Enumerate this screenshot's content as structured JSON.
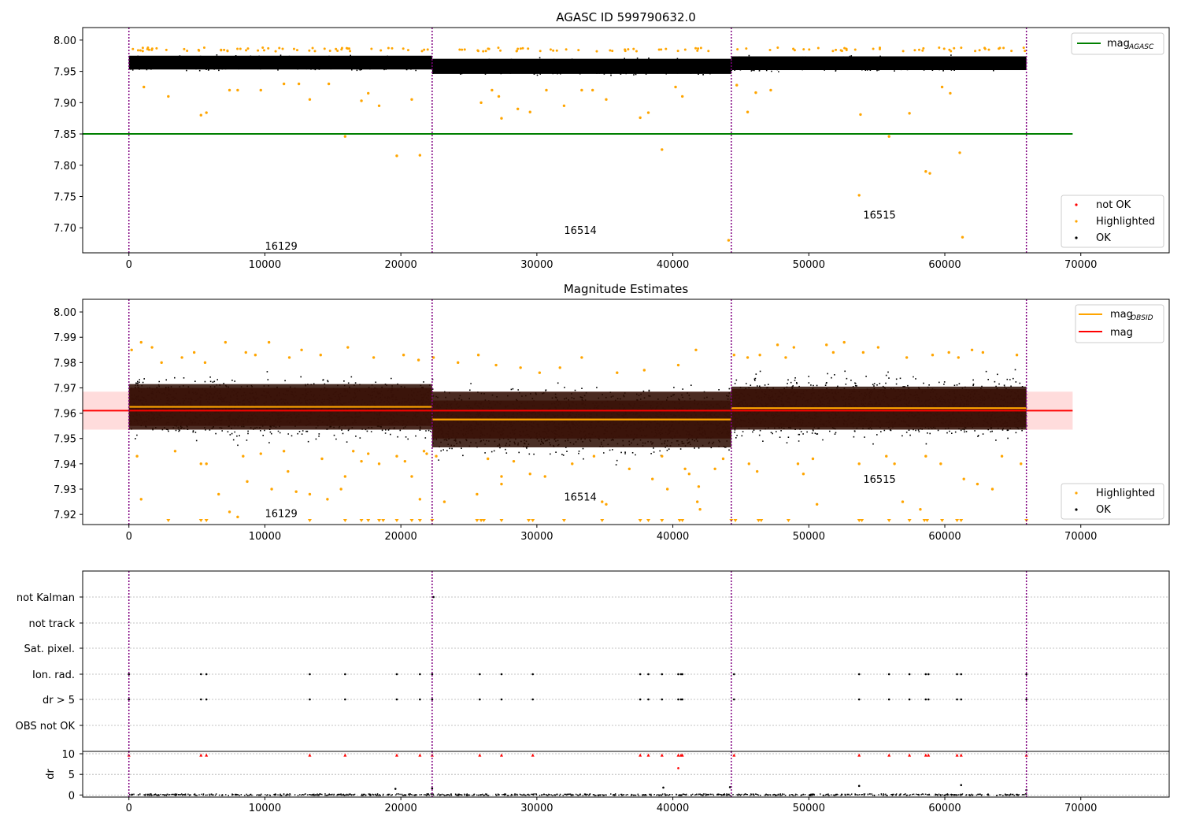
{
  "figure": {
    "vline_color": "#800080",
    "segment_boundaries": [
      0,
      22300,
      44300,
      66000
    ]
  },
  "chart_data": [
    {
      "type": "scatter",
      "title": "AGASC ID 599790632.0",
      "xlabel": "",
      "ylabel": "",
      "xlim": [
        -3400,
        76500
      ],
      "ylim": [
        7.66,
        8.02
      ],
      "x_ticks": [
        0,
        10000,
        20000,
        30000,
        40000,
        50000,
        60000,
        70000
      ],
      "y_ticks": [
        7.7,
        7.75,
        7.8,
        7.85,
        7.9,
        7.95,
        8.0
      ],
      "y_tick_labels": [
        "7.70",
        "7.75",
        "7.80",
        "7.85",
        "7.90",
        "7.95",
        "8.00"
      ],
      "grid": false,
      "segments": [
        {
          "obsid": "16129",
          "x_start": 0,
          "x_end": 22300,
          "ok_center": 7.964,
          "ok_spread": 0.01
        },
        {
          "obsid": "16514",
          "x_start": 22300,
          "x_end": 44300,
          "ok_center": 7.958,
          "ok_spread": 0.011
        },
        {
          "obsid": "16515",
          "x_start": 44300,
          "x_end": 66000,
          "ok_center": 7.963,
          "ok_spread": 0.01
        }
      ],
      "obsid_labels": [
        {
          "text": "16129",
          "x": 10000,
          "y": 7.665
        },
        {
          "text": "16514",
          "x": 32000,
          "y": 7.69
        },
        {
          "text": "16515",
          "x": 54000,
          "y": 7.715
        }
      ],
      "highlighted_points": [
        [
          5300,
          7.88
        ],
        [
          5700,
          7.884
        ],
        [
          7400,
          7.92
        ],
        [
          8000,
          7.92
        ],
        [
          9700,
          7.92
        ],
        [
          11400,
          7.93
        ],
        [
          12500,
          7.93
        ],
        [
          13300,
          7.905
        ],
        [
          14700,
          7.93
        ],
        [
          15900,
          7.846
        ],
        [
          17100,
          7.903
        ],
        [
          17600,
          7.915
        ],
        [
          18400,
          7.895
        ],
        [
          19700,
          7.815
        ],
        [
          20800,
          7.905
        ],
        [
          21400,
          7.816
        ],
        [
          2900,
          7.91
        ],
        [
          1100,
          7.925
        ],
        [
          25900,
          7.9
        ],
        [
          26700,
          7.92
        ],
        [
          27200,
          7.91
        ],
        [
          27400,
          7.875
        ],
        [
          28600,
          7.89
        ],
        [
          29500,
          7.885
        ],
        [
          30700,
          7.92
        ],
        [
          32000,
          7.895
        ],
        [
          33300,
          7.92
        ],
        [
          34100,
          7.92
        ],
        [
          35100,
          7.905
        ],
        [
          37600,
          7.876
        ],
        [
          38200,
          7.884
        ],
        [
          39200,
          7.825
        ],
        [
          40200,
          7.925
        ],
        [
          40700,
          7.91
        ],
        [
          44100,
          7.68
        ],
        [
          44700,
          7.928
        ],
        [
          45500,
          7.885
        ],
        [
          46100,
          7.916
        ],
        [
          47200,
          7.92
        ],
        [
          53800,
          7.881
        ],
        [
          53700,
          7.752
        ],
        [
          55900,
          7.846
        ],
        [
          57400,
          7.883
        ],
        [
          58600,
          7.79
        ],
        [
          58900,
          7.787
        ],
        [
          59800,
          7.925
        ],
        [
          60400,
          7.915
        ],
        [
          61100,
          7.82
        ],
        [
          61300,
          7.685
        ]
      ],
      "ref_lines": [
        {
          "name": "mag_AGASC",
          "y": 7.85,
          "x_start": -3400,
          "x_end": 69400,
          "color": "#008000"
        }
      ],
      "legends": [
        {
          "placement": "top-right",
          "entries": [
            {
              "label": "mag",
              "subscript": "AGASC",
              "marker": "line",
              "color": "#008000"
            }
          ]
        },
        {
          "placement": "bottom-right",
          "entries": [
            {
              "label": "not OK",
              "marker": "dot",
              "color": "#ff0000"
            },
            {
              "label": "Highlighted",
              "marker": "dot",
              "color": "#ffa500"
            },
            {
              "label": "OK",
              "marker": "dot",
              "color": "#000000"
            }
          ]
        }
      ]
    },
    {
      "type": "scatter",
      "title": "Magnitude Estimates",
      "xlabel": "",
      "ylabel": "",
      "xlim": [
        -3400,
        76500
      ],
      "ylim": [
        7.916,
        8.005
      ],
      "x_ticks": [
        0,
        10000,
        20000,
        30000,
        40000,
        50000,
        60000,
        70000
      ],
      "y_ticks": [
        7.92,
        7.93,
        7.94,
        7.95,
        7.96,
        7.97,
        7.98,
        7.99,
        8.0
      ],
      "y_tick_labels": [
        "7.92",
        "7.93",
        "7.94",
        "7.95",
        "7.96",
        "7.97",
        "7.98",
        "7.99",
        "8.00"
      ],
      "grid": false,
      "segments": [
        {
          "obsid": "16129",
          "x_start": 0,
          "x_end": 22300,
          "mag_obsid": 7.9625,
          "band_inner": [
            7.955,
            7.97
          ],
          "band_outer": [
            7.9535,
            7.9715
          ],
          "ok_center": 7.9625,
          "ok_spread": 0.0115
        },
        {
          "obsid": "16514",
          "x_start": 22300,
          "x_end": 44300,
          "mag_obsid": 7.9575,
          "band_inner": [
            7.95,
            7.965
          ],
          "band_outer": [
            7.9465,
            7.9685
          ],
          "ok_center": 7.957,
          "ok_spread": 0.0125
        },
        {
          "obsid": "16515",
          "x_start": 44300,
          "x_end": 66000,
          "mag_obsid": 7.962,
          "band_inner": [
            7.9545,
            7.9695
          ],
          "band_outer": [
            7.9535,
            7.9705
          ],
          "ok_center": 7.9625,
          "ok_spread": 0.0115
        }
      ],
      "obsid_labels": [
        {
          "text": "16129",
          "x": 10000,
          "y": 7.919
        },
        {
          "text": "16514",
          "x": 32000,
          "y": 7.9255
        },
        {
          "text": "16515",
          "x": 54000,
          "y": 7.9325
        }
      ],
      "highlighted_points": [
        [
          200,
          7.985
        ],
        [
          900,
          7.988
        ],
        [
          1700,
          7.986
        ],
        [
          2400,
          7.98
        ],
        [
          3900,
          7.982
        ],
        [
          4800,
          7.984
        ],
        [
          5600,
          7.98
        ],
        [
          7100,
          7.988
        ],
        [
          8600,
          7.984
        ],
        [
          9300,
          7.983
        ],
        [
          10300,
          7.988
        ],
        [
          11800,
          7.982
        ],
        [
          12700,
          7.985
        ],
        [
          14100,
          7.983
        ],
        [
          16100,
          7.986
        ],
        [
          18000,
          7.982
        ],
        [
          20200,
          7.983
        ],
        [
          21300,
          7.981
        ],
        [
          600,
          7.943
        ],
        [
          900,
          7.926
        ],
        [
          3400,
          7.945
        ],
        [
          5300,
          7.94
        ],
        [
          5700,
          7.94
        ],
        [
          6600,
          7.928
        ],
        [
          7400,
          7.921
        ],
        [
          8000,
          7.919
        ],
        [
          8400,
          7.943
        ],
        [
          8700,
          7.933
        ],
        [
          9700,
          7.944
        ],
        [
          10500,
          7.93
        ],
        [
          11400,
          7.945
        ],
        [
          11700,
          7.937
        ],
        [
          12300,
          7.929
        ],
        [
          13300,
          7.928
        ],
        [
          14200,
          7.942
        ],
        [
          14600,
          7.926
        ],
        [
          15600,
          7.93
        ],
        [
          15900,
          7.935
        ],
        [
          16500,
          7.945
        ],
        [
          17100,
          7.941
        ],
        [
          17600,
          7.944
        ],
        [
          18400,
          7.94
        ],
        [
          19700,
          7.943
        ],
        [
          20300,
          7.941
        ],
        [
          20800,
          7.935
        ],
        [
          21400,
          7.926
        ],
        [
          21700,
          7.945
        ],
        [
          21900,
          7.944
        ],
        [
          22400,
          7.982
        ],
        [
          22600,
          7.943
        ],
        [
          23200,
          7.925
        ],
        [
          24200,
          7.98
        ],
        [
          25600,
          7.928
        ],
        [
          25700,
          7.983
        ],
        [
          26400,
          7.942
        ],
        [
          27000,
          7.979
        ],
        [
          27400,
          7.935
        ],
        [
          27400,
          7.932
        ],
        [
          28300,
          7.941
        ],
        [
          28800,
          7.978
        ],
        [
          29500,
          7.936
        ],
        [
          30200,
          7.976
        ],
        [
          30600,
          7.935
        ],
        [
          31700,
          7.978
        ],
        [
          32600,
          7.94
        ],
        [
          33300,
          7.982
        ],
        [
          34200,
          7.943
        ],
        [
          34800,
          7.925
        ],
        [
          35100,
          7.924
        ],
        [
          35900,
          7.976
        ],
        [
          36800,
          7.938
        ],
        [
          37900,
          7.977
        ],
        [
          38500,
          7.934
        ],
        [
          39200,
          7.943
        ],
        [
          39600,
          7.93
        ],
        [
          40400,
          7.979
        ],
        [
          40900,
          7.938
        ],
        [
          41200,
          7.936
        ],
        [
          41700,
          7.985
        ],
        [
          41800,
          7.925
        ],
        [
          41900,
          7.931
        ],
        [
          42000,
          7.922
        ],
        [
          43100,
          7.938
        ],
        [
          43700,
          7.942
        ],
        [
          44500,
          7.983
        ],
        [
          45500,
          7.982
        ],
        [
          45600,
          7.94
        ],
        [
          46200,
          7.937
        ],
        [
          46400,
          7.983
        ],
        [
          47700,
          7.987
        ],
        [
          48300,
          7.982
        ],
        [
          48900,
          7.986
        ],
        [
          49200,
          7.94
        ],
        [
          49600,
          7.936
        ],
        [
          50300,
          7.942
        ],
        [
          50600,
          7.924
        ],
        [
          51300,
          7.987
        ],
        [
          51800,
          7.984
        ],
        [
          52600,
          7.988
        ],
        [
          53700,
          7.94
        ],
        [
          54000,
          7.984
        ],
        [
          55100,
          7.986
        ],
        [
          55700,
          7.943
        ],
        [
          56300,
          7.94
        ],
        [
          56900,
          7.925
        ],
        [
          57200,
          7.982
        ],
        [
          58200,
          7.922
        ],
        [
          58600,
          7.943
        ],
        [
          59100,
          7.983
        ],
        [
          59700,
          7.94
        ],
        [
          60300,
          7.984
        ],
        [
          61000,
          7.982
        ],
        [
          61400,
          7.934
        ],
        [
          62000,
          7.985
        ],
        [
          62400,
          7.932
        ],
        [
          62800,
          7.984
        ],
        [
          63500,
          7.93
        ],
        [
          64200,
          7.943
        ],
        [
          65300,
          7.983
        ],
        [
          65600,
          7.94
        ]
      ],
      "below_range_markers_x": [
        2900,
        5300,
        5700,
        13300,
        15900,
        17100,
        17600,
        18400,
        18700,
        19700,
        20800,
        21400,
        22300,
        25600,
        25900,
        26100,
        27400,
        29400,
        29700,
        32000,
        34800,
        37600,
        38200,
        39200,
        40500,
        40700,
        44300,
        44600,
        46300,
        46500,
        48500,
        53700,
        53900,
        55900,
        57400,
        58500,
        58700,
        59800,
        60900,
        61200,
        66000
      ],
      "ref_lines": [
        {
          "name": "mag",
          "y": 7.961,
          "x_start": -3400,
          "x_end": 69400,
          "color": "#ff0000",
          "band": [
            7.9535,
            7.9685
          ]
        }
      ],
      "legends": [
        {
          "placement": "top-right",
          "entries": [
            {
              "label": "mag",
              "subscript": "OBSID",
              "marker": "line",
              "color": "#ffa500"
            },
            {
              "label": "mag",
              "marker": "line",
              "color": "#ff0000"
            }
          ]
        },
        {
          "placement": "bottom-right",
          "entries": [
            {
              "label": "Highlighted",
              "marker": "dot",
              "color": "#ffa500"
            },
            {
              "label": "OK",
              "marker": "dot",
              "color": "#000000"
            }
          ]
        }
      ]
    },
    {
      "type": "scatter",
      "title": "",
      "xlabel": "",
      "ylabel": "",
      "xlim": [
        -3400,
        76500
      ],
      "x_ticks": [
        0,
        10000,
        20000,
        30000,
        40000,
        50000,
        60000,
        70000
      ],
      "flag_rows": [
        "not Kalman",
        "not track",
        "Sat. pixel.",
        "Ion. rad.",
        "dr > 5",
        "OBS not OK"
      ],
      "flag_points": {
        "not Kalman": [
          22400
        ],
        "not track": [],
        "Sat. pixel.": [],
        "Ion. rad.": [
          0,
          5300,
          5700,
          13300,
          15900,
          19700,
          21400,
          22300,
          25800,
          27400,
          29700,
          37600,
          38200,
          39200,
          40400,
          40600,
          40700,
          44500,
          53700,
          55900,
          57400,
          58600,
          58800,
          60900,
          61200,
          66000
        ],
        "dr > 5": [
          0,
          5300,
          5700,
          13300,
          15900,
          19700,
          21400,
          22300,
          25800,
          27400,
          29700,
          37600,
          38200,
          39200,
          40400,
          40600,
          40700,
          44500,
          53700,
          55900,
          57400,
          58600,
          58800,
          60900,
          61200,
          66000
        ],
        "OBS not OK": []
      },
      "grid": "horizontal dotted"
    },
    {
      "type": "scatter",
      "title": "",
      "xlabel": "",
      "ylabel": "dr",
      "xlim": [
        -3400,
        76500
      ],
      "ylim": [
        -0.5,
        10
      ],
      "x_ticks": [
        0,
        10000,
        20000,
        30000,
        40000,
        50000,
        60000,
        70000
      ],
      "y_ticks": [
        0,
        5,
        10
      ],
      "clipped_markers_x": [
        0,
        5300,
        5700,
        13300,
        15900,
        19700,
        21400,
        22300,
        25800,
        27400,
        29700,
        37600,
        38200,
        39200,
        40400,
        40600,
        40700,
        44500,
        53700,
        55900,
        57400,
        58600,
        58800,
        60900,
        61200,
        66000
      ],
      "outlier_points": [
        [
          40400,
          6.5
        ],
        [
          19600,
          1.5
        ],
        [
          22300,
          1.6
        ],
        [
          39300,
          1.8
        ],
        [
          44200,
          1.9
        ],
        [
          53700,
          2.2
        ],
        [
          61200,
          2.4
        ],
        [
          66000,
          1.2
        ]
      ],
      "baseline": [
        0,
        0.4
      ],
      "grid": "horizontal dotted"
    }
  ]
}
